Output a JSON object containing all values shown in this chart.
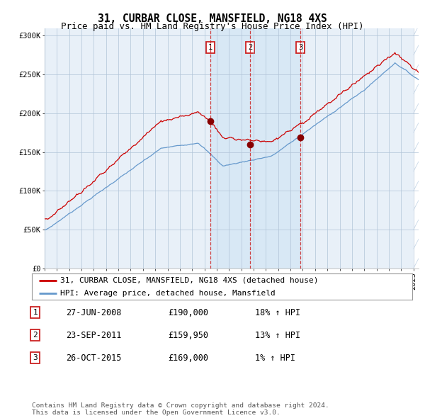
{
  "title": "31, CURBAR CLOSE, MANSFIELD, NG18 4XS",
  "subtitle": "Price paid vs. HM Land Registry's House Price Index (HPI)",
  "ylim": [
    0,
    310000
  ],
  "yticks": [
    0,
    50000,
    100000,
    150000,
    200000,
    250000,
    300000
  ],
  "ytick_labels": [
    "£0",
    "£50K",
    "£100K",
    "£150K",
    "£200K",
    "£250K",
    "£300K"
  ],
  "xstart": 1995.0,
  "xend": 2025.42,
  "sale_dates_yr": [
    2008.49,
    2011.72,
    2015.81
  ],
  "sale_prices": [
    190000,
    159950,
    169000
  ],
  "sale_labels": [
    "1",
    "2",
    "3"
  ],
  "legend_line1": "31, CURBAR CLOSE, MANSFIELD, NG18 4XS (detached house)",
  "legend_line2": "HPI: Average price, detached house, Mansfield",
  "table_rows": [
    [
      "1",
      "27-JUN-2008",
      "£190,000",
      "18% ↑ HPI"
    ],
    [
      "2",
      "23-SEP-2011",
      "£159,950",
      "13% ↑ HPI"
    ],
    [
      "3",
      "26-OCT-2015",
      "£169,000",
      "1% ↑ HPI"
    ]
  ],
  "footnote": "Contains HM Land Registry data © Crown copyright and database right 2024.\nThis data is licensed under the Open Government Licence v3.0.",
  "red_line_color": "#cc0000",
  "blue_line_color": "#6699cc",
  "sale_dot_color": "#880000",
  "shaded_region_color": "#d8e8f5",
  "grid_color": "#b0c4d8",
  "bg_color": "#e8f0f8",
  "hatch_color": "#c8d8e8",
  "title_fontsize": 10.5,
  "subtitle_fontsize": 9,
  "tick_fontsize": 7.5,
  "legend_fontsize": 8,
  "table_fontsize": 8.5
}
